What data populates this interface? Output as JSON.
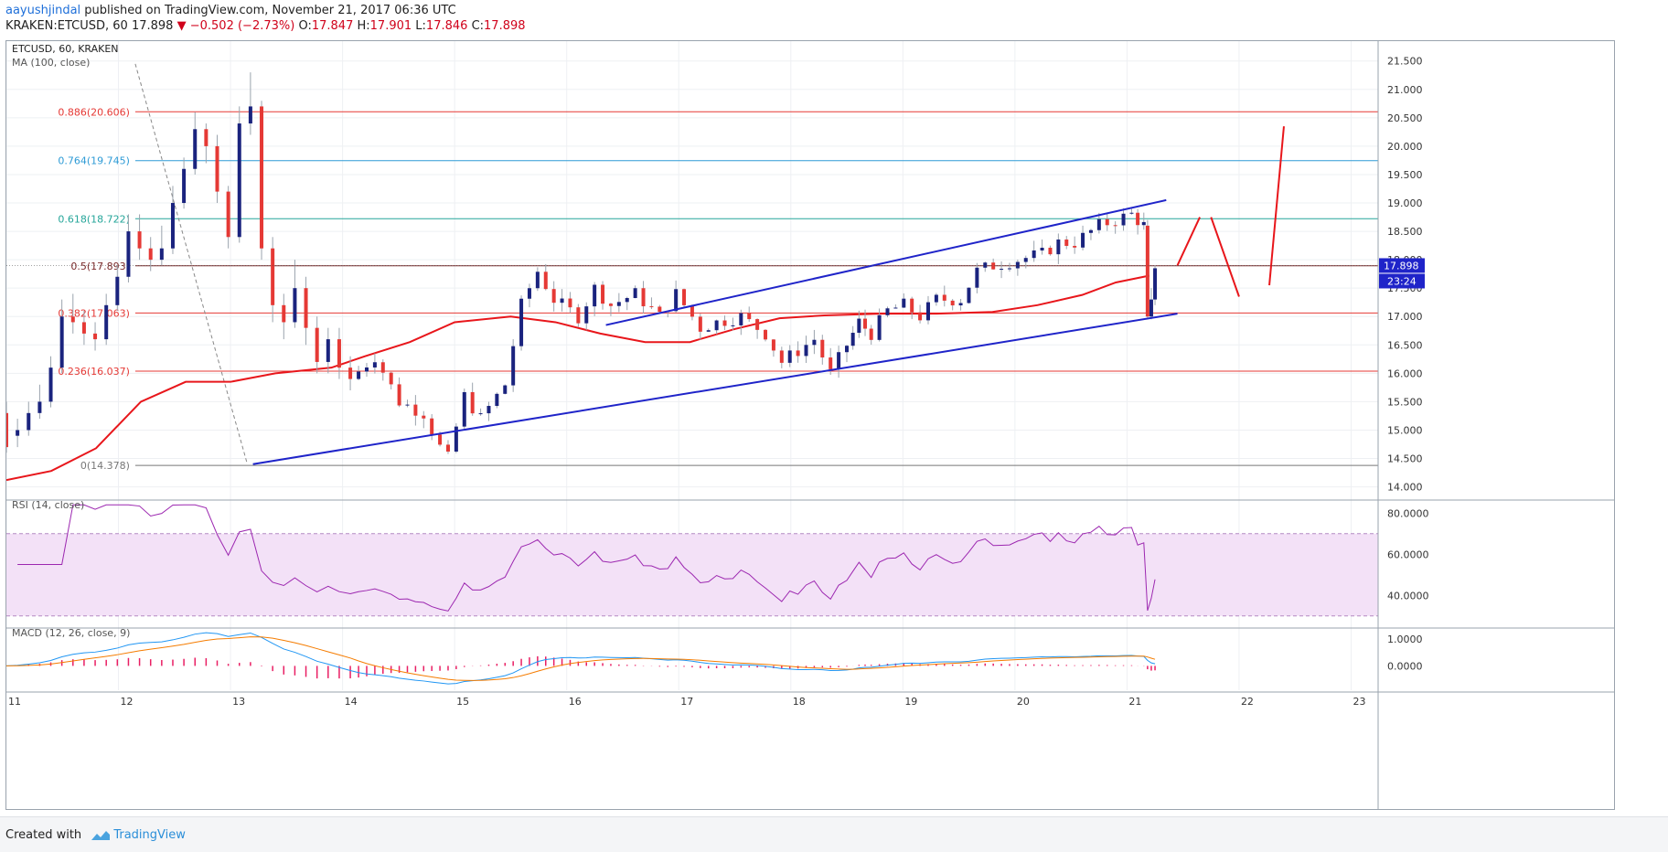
{
  "header": {
    "author": "aayushjindal",
    "published": " published on TradingView.com, November 21, 2017 06:36 UTC",
    "symbol": "KRAKEN:ETCUSD, 60",
    "last": "17.898",
    "change": "▼ −0.502 (−2.73%)",
    "o_label": "O:",
    "o": "17.847",
    "h_label": "H:",
    "h": "17.901",
    "l_label": "L:",
    "l": "17.846",
    "c_label": "C:",
    "c": "17.898"
  },
  "footer": {
    "created_with": "Created with",
    "brand": "TradingView"
  },
  "colors": {
    "bull": "#1a237e",
    "bear": "#e53935",
    "ma": "#e8161b",
    "channel": "#1f24c9",
    "fib_red": "#e53935",
    "fib_teal": "#26a69a",
    "fib_blue": "#2e9bd6",
    "rsi": "#9c27b0",
    "rsi_band": "#f3e1f7",
    "macd": "#2196f3",
    "signal": "#f57c00",
    "hist": "#e91e63",
    "price_tag": "#1f24c9",
    "annotation": "#e8161b"
  },
  "chart_data": [
    {
      "type": "candlestick",
      "title": "ETCUSD, 60, KRAKEN",
      "indicator_label": "MA (100, close)",
      "y_axis_labels": [
        "21.500",
        "21.000",
        "20.500",
        "20.000",
        "19.500",
        "19.000",
        "18.500",
        "18.000",
        "17.500",
        "17.000",
        "16.500",
        "16.000",
        "15.500",
        "15.000",
        "14.500",
        "14.000"
      ],
      "ylim": [
        13.8,
        21.85
      ],
      "x_tick_labels": [
        "11",
        "12",
        "13",
        "14",
        "15",
        "16",
        "17",
        "18",
        "19",
        "20",
        "21",
        "22",
        "23"
      ],
      "xlim_days": [
        11,
        23.2
      ],
      "last_price_tag": "17.898",
      "countdown_tag": "23:24",
      "fibonacci": [
        {
          "label": "0.886(20.606)",
          "value": 20.606,
          "color": "red"
        },
        {
          "label": "0.764(19.745)",
          "value": 19.745,
          "color": "teal-blue"
        },
        {
          "label": "0.618(18.722)",
          "value": 18.722,
          "color": "teal"
        },
        {
          "label": "0.5(17.893)",
          "value": 17.893,
          "color": "dark"
        },
        {
          "label": "0.382(17.063)",
          "value": 17.063,
          "color": "red"
        },
        {
          "label": "0.236(16.037)",
          "value": 16.037,
          "color": "red"
        },
        {
          "label": "0(14.378)",
          "value": 14.378,
          "color": "gray"
        }
      ],
      "channel_lines": [
        {
          "from": [
            13.2,
            14.4
          ],
          "to": [
            21.45,
            17.05
          ]
        },
        {
          "from": [
            16.35,
            16.85
          ],
          "to": [
            21.35,
            19.05
          ]
        }
      ],
      "fib_swing_line": {
        "from": [
          12.15,
          21.45
        ],
        "to": [
          13.15,
          14.4
        ]
      },
      "ma100": [
        [
          11.0,
          14.12
        ],
        [
          11.4,
          14.28
        ],
        [
          11.8,
          14.68
        ],
        [
          12.2,
          15.5
        ],
        [
          12.6,
          15.85
        ],
        [
          13.0,
          15.85
        ],
        [
          13.4,
          16.0
        ],
        [
          13.9,
          16.1
        ],
        [
          14.2,
          16.3
        ],
        [
          14.6,
          16.55
        ],
        [
          15.0,
          16.9
        ],
        [
          15.5,
          17.0
        ],
        [
          15.9,
          16.9
        ],
        [
          16.3,
          16.7
        ],
        [
          16.7,
          16.55
        ],
        [
          17.1,
          16.55
        ],
        [
          17.5,
          16.78
        ],
        [
          17.9,
          16.97
        ],
        [
          18.3,
          17.02
        ],
        [
          18.8,
          17.05
        ],
        [
          19.3,
          17.05
        ],
        [
          19.8,
          17.08
        ],
        [
          20.2,
          17.2
        ],
        [
          20.6,
          17.38
        ],
        [
          20.9,
          17.6
        ],
        [
          21.2,
          17.72
        ]
      ],
      "candles": [
        [
          11.0,
          15.3,
          14.7,
          15.5,
          14.6
        ],
        [
          11.1,
          14.9,
          15.0,
          15.2,
          14.7
        ],
        [
          11.2,
          15.0,
          15.3,
          15.5,
          14.9
        ],
        [
          11.3,
          15.3,
          15.5,
          15.8,
          15.2
        ],
        [
          11.4,
          15.5,
          16.1,
          16.3,
          15.4
        ],
        [
          11.5,
          16.1,
          17.0,
          17.3,
          16.0
        ],
        [
          11.6,
          17.0,
          16.9,
          17.4,
          16.7
        ],
        [
          11.7,
          16.9,
          16.7,
          17.1,
          16.5
        ],
        [
          11.8,
          16.7,
          16.6,
          16.9,
          16.4
        ],
        [
          11.9,
          16.6,
          17.2,
          17.4,
          16.5
        ],
        [
          12.0,
          17.2,
          17.7,
          17.9,
          17.1
        ],
        [
          12.1,
          17.7,
          18.5,
          18.8,
          17.6
        ],
        [
          12.2,
          18.5,
          18.2,
          18.8,
          18.0
        ],
        [
          12.3,
          18.2,
          18.0,
          18.4,
          17.8
        ],
        [
          12.4,
          18.0,
          18.2,
          18.6,
          17.9
        ],
        [
          12.5,
          18.2,
          19.0,
          19.3,
          18.1
        ],
        [
          12.6,
          19.0,
          19.6,
          19.8,
          18.9
        ],
        [
          12.7,
          19.6,
          20.3,
          20.6,
          19.5
        ],
        [
          12.8,
          20.3,
          20.0,
          20.4,
          19.7
        ],
        [
          12.9,
          20.0,
          19.2,
          20.2,
          19.0
        ],
        [
          13.0,
          19.2,
          18.4,
          19.3,
          18.2
        ],
        [
          13.1,
          18.4,
          20.4,
          20.7,
          18.3
        ],
        [
          13.2,
          20.4,
          20.7,
          21.3,
          20.2
        ],
        [
          13.3,
          20.7,
          18.2,
          20.8,
          18.0
        ],
        [
          13.4,
          18.2,
          17.2,
          18.4,
          16.9
        ],
        [
          13.5,
          17.2,
          16.9,
          17.4,
          16.6
        ],
        [
          13.6,
          16.9,
          17.5,
          18.0,
          16.8
        ],
        [
          13.7,
          17.5,
          16.8,
          17.7,
          16.5
        ],
        [
          13.8,
          16.8,
          16.2,
          17.0,
          16.0
        ],
        [
          13.9,
          16.2,
          16.6,
          16.8,
          16.0
        ],
        [
          14.0,
          16.6,
          16.1,
          16.8,
          15.9
        ],
        [
          14.1,
          16.1,
          15.9,
          16.3,
          15.7
        ]
      ]
    },
    {
      "type": "line",
      "title": "RSI (14, close)",
      "y_axis_labels": [
        "80.0000",
        "60.0000",
        "40.0000"
      ],
      "ylim": [
        25,
        85
      ],
      "bands": [
        30,
        70
      ]
    },
    {
      "type": "line+bar",
      "title": "MACD (12, 26, close, 9)",
      "y_axis_labels": [
        "1.0000",
        "0.0000"
      ],
      "ylim": [
        -0.9,
        1.3
      ]
    }
  ]
}
